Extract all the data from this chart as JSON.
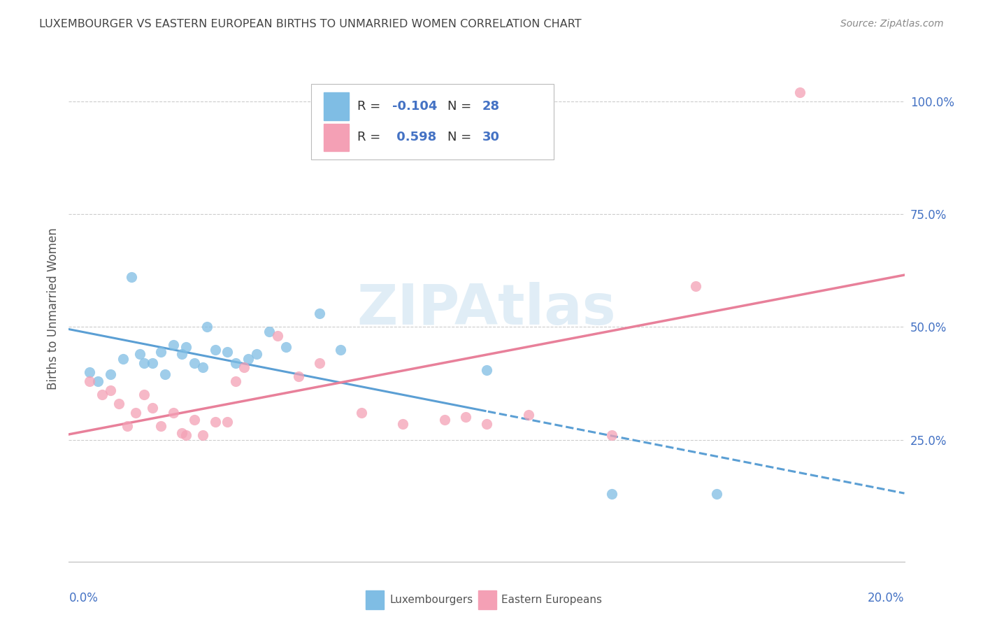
{
  "title": "LUXEMBOURGER VS EASTERN EUROPEAN BIRTHS TO UNMARRIED WOMEN CORRELATION CHART",
  "source": "Source: ZipAtlas.com",
  "ylabel": "Births to Unmarried Women",
  "y_tick_vals": [
    1.0,
    0.75,
    0.5,
    0.25
  ],
  "xlim": [
    0.0,
    0.2
  ],
  "ylim": [
    -0.02,
    1.1
  ],
  "R_lux": -0.104,
  "N_lux": 28,
  "R_ee": 0.598,
  "N_ee": 30,
  "color_lux": "#7fbde4",
  "color_ee": "#f4a0b5",
  "color_lux_line": "#5b9fd4",
  "color_ee_line": "#e8809a",
  "watermark": "ZIPAtlas",
  "lux_x": [
    0.005,
    0.007,
    0.01,
    0.013,
    0.015,
    0.017,
    0.018,
    0.02,
    0.022,
    0.023,
    0.025,
    0.027,
    0.028,
    0.03,
    0.032,
    0.033,
    0.035,
    0.038,
    0.04,
    0.043,
    0.045,
    0.048,
    0.052,
    0.06,
    0.065,
    0.1,
    0.13,
    0.155
  ],
  "lux_y": [
    0.4,
    0.38,
    0.395,
    0.43,
    0.61,
    0.44,
    0.42,
    0.42,
    0.445,
    0.395,
    0.46,
    0.44,
    0.455,
    0.42,
    0.41,
    0.5,
    0.45,
    0.445,
    0.42,
    0.43,
    0.44,
    0.49,
    0.455,
    0.53,
    0.45,
    0.405,
    0.13,
    0.13
  ],
  "ee_x": [
    0.005,
    0.008,
    0.01,
    0.012,
    0.014,
    0.016,
    0.018,
    0.02,
    0.022,
    0.025,
    0.027,
    0.028,
    0.03,
    0.032,
    0.035,
    0.038,
    0.04,
    0.042,
    0.05,
    0.055,
    0.06,
    0.07,
    0.08,
    0.09,
    0.095,
    0.1,
    0.11,
    0.13,
    0.15,
    0.175
  ],
  "ee_y": [
    0.38,
    0.35,
    0.36,
    0.33,
    0.28,
    0.31,
    0.35,
    0.32,
    0.28,
    0.31,
    0.265,
    0.26,
    0.295,
    0.26,
    0.29,
    0.29,
    0.38,
    0.41,
    0.48,
    0.39,
    0.42,
    0.31,
    0.285,
    0.295,
    0.3,
    0.285,
    0.305,
    0.26,
    0.59,
    1.02
  ]
}
